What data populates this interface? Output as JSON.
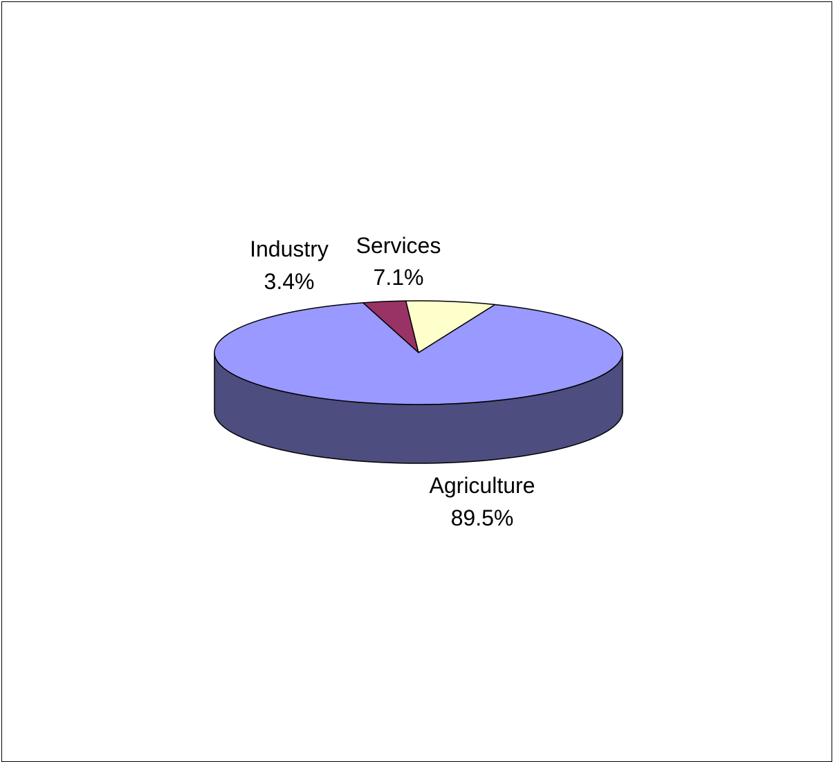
{
  "chart_data": {
    "type": "pie",
    "three_d": true,
    "slices": [
      {
        "name": "Agriculture",
        "value": 89.5,
        "percent_label": "89.5%",
        "color": "#9999ff",
        "side_color": "#4d4d7f"
      },
      {
        "name": "Industry",
        "value": 3.4,
        "percent_label": "3.4%",
        "color": "#993366",
        "side_color": "#4d1a33"
      },
      {
        "name": "Services",
        "value": 7.1,
        "percent_label": "7.1%",
        "color": "#ffffcc",
        "side_color": "#808066"
      }
    ]
  }
}
